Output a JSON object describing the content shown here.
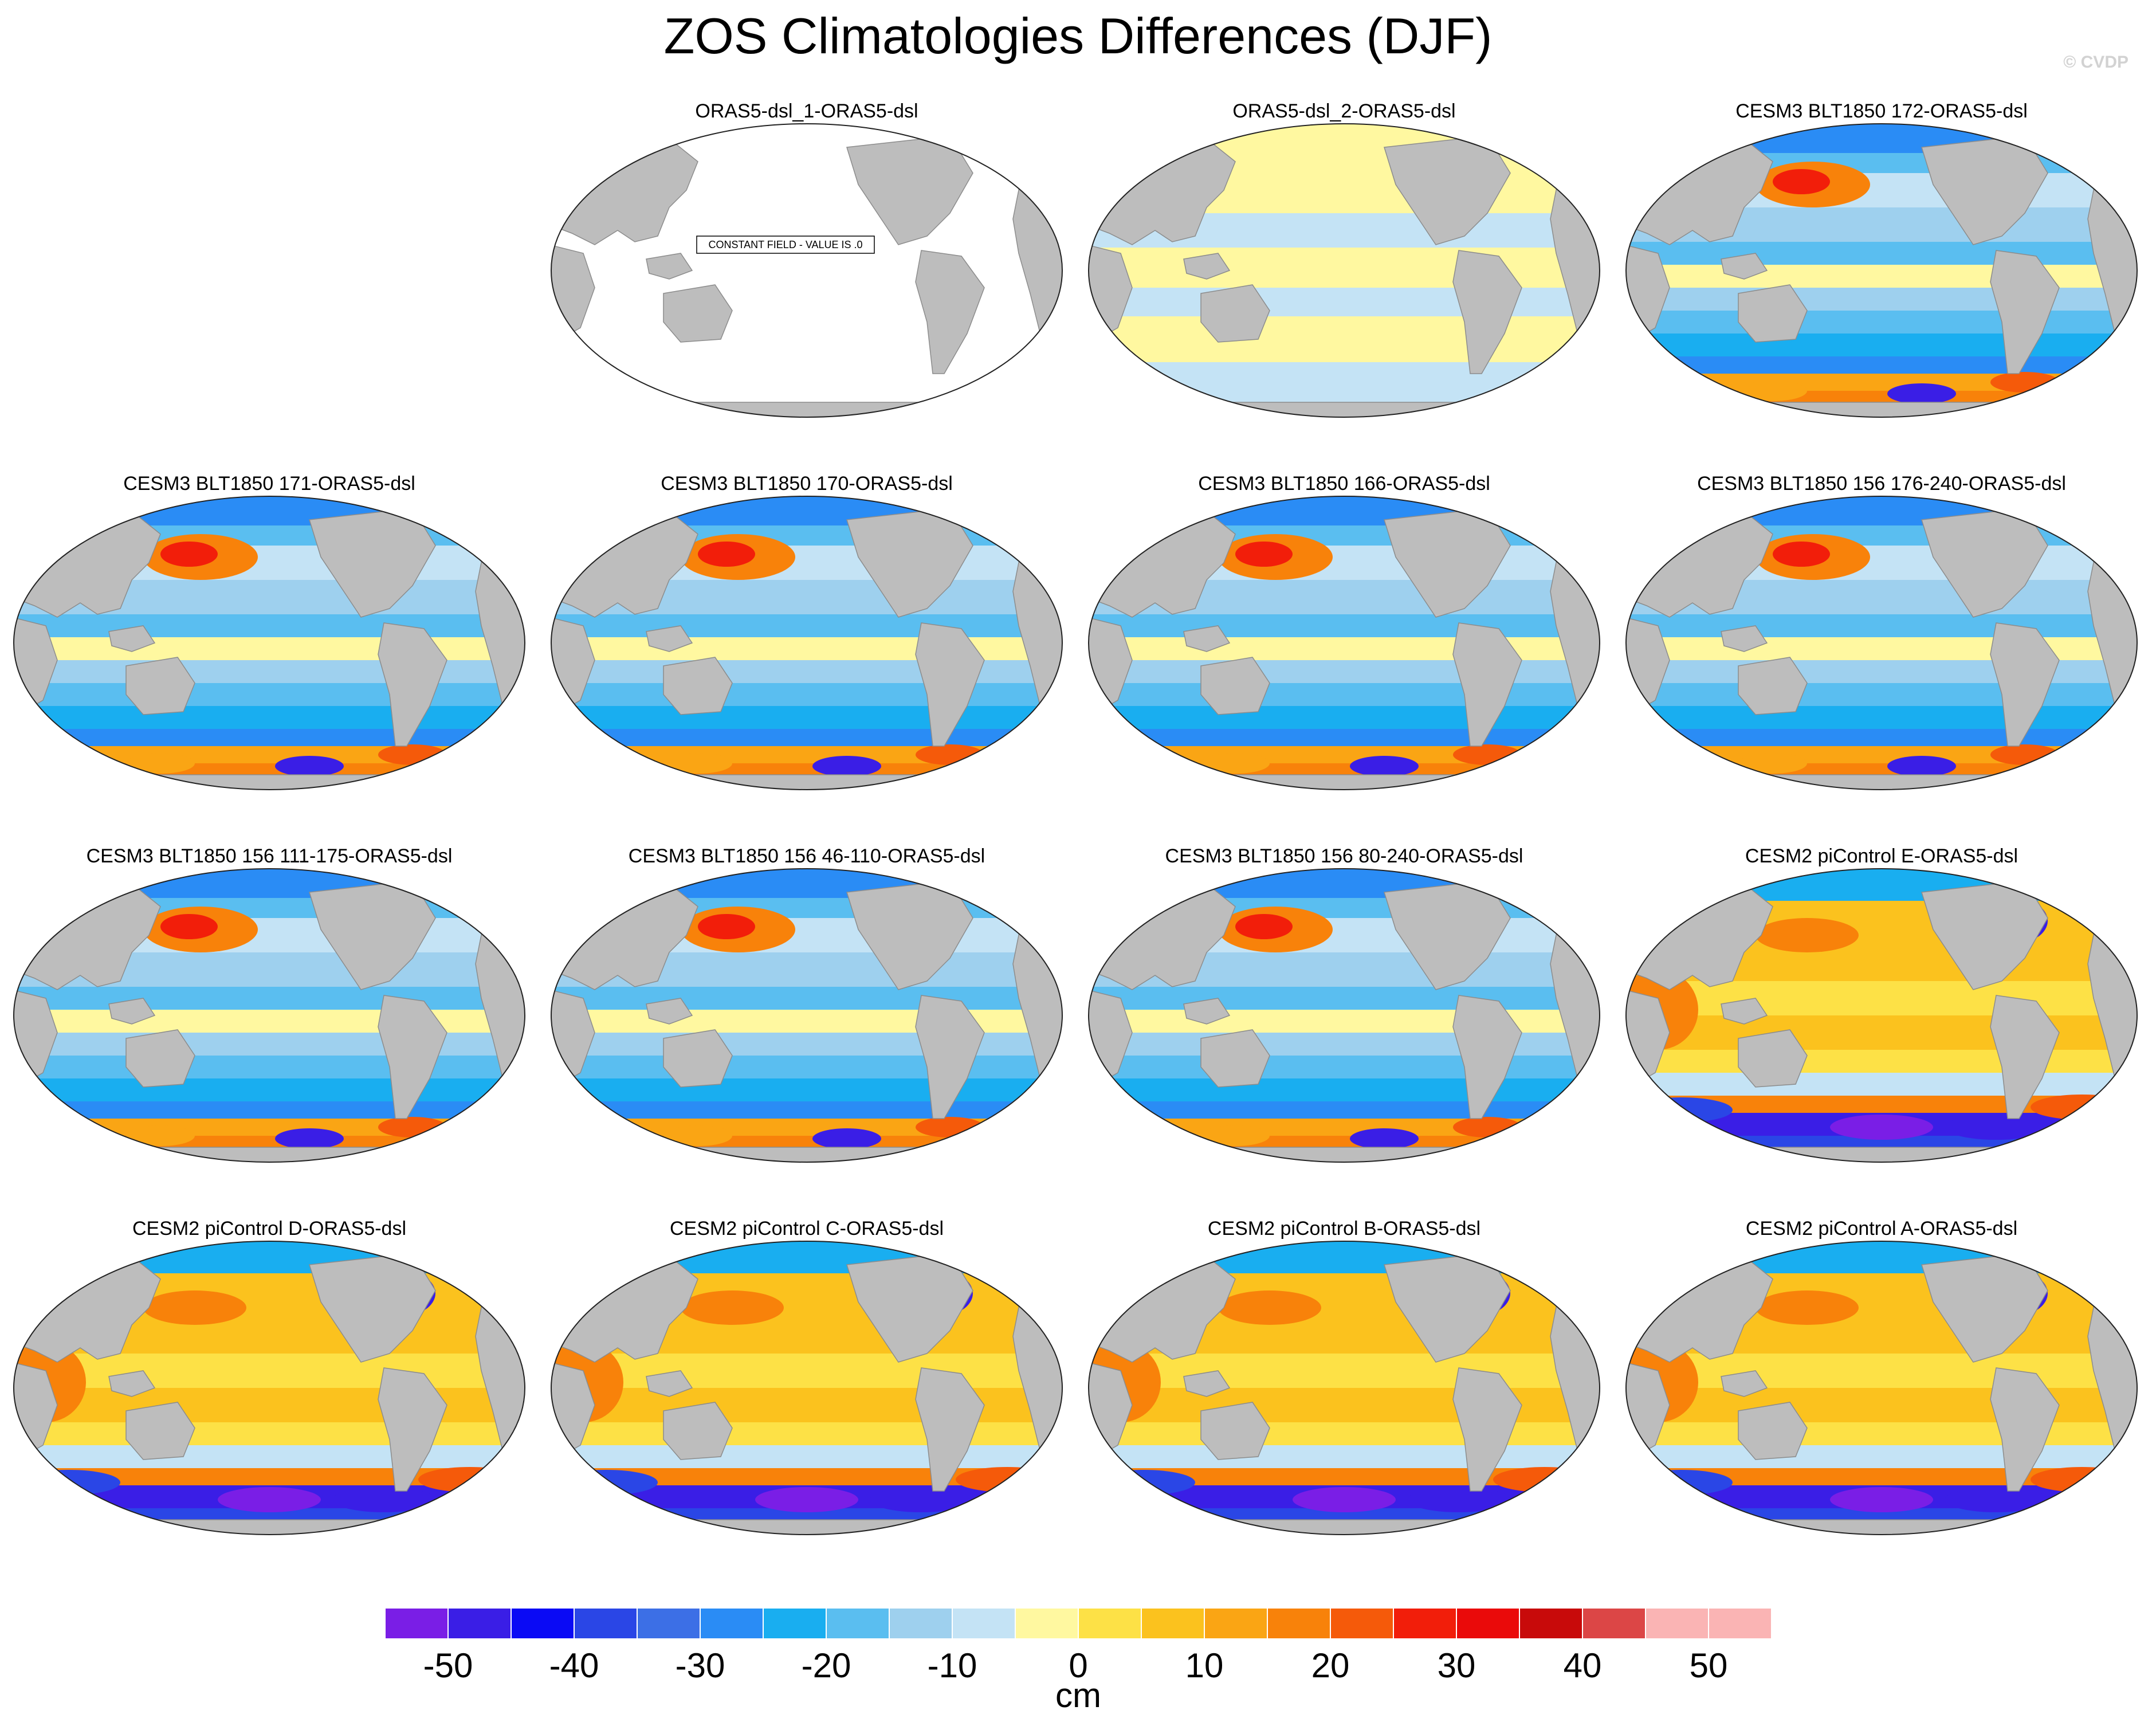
{
  "figure": {
    "title": "ZOS Climatologies Differences (DJF)",
    "copyright": "© CVDP",
    "background": "#ffffff",
    "land_color": "#bdbdbd"
  },
  "panels": [
    {
      "title": "ORAS5-dsl_1-ORAS5-dsl",
      "fill": "constant",
      "note": "CONSTANT FIELD - VALUE IS .0"
    },
    {
      "title": "ORAS5-dsl_2-ORAS5-dsl",
      "fill": "near-zero"
    },
    {
      "title": "CESM3 BLT1850 172-ORAS5-dsl",
      "fill": "cesm3"
    },
    {
      "title": "CESM3 BLT1850 171-ORAS5-dsl",
      "fill": "cesm3"
    },
    {
      "title": "CESM3 BLT1850 170-ORAS5-dsl",
      "fill": "cesm3"
    },
    {
      "title": "CESM3 BLT1850 166-ORAS5-dsl",
      "fill": "cesm3"
    },
    {
      "title": "CESM3 BLT1850 156 176-240-ORAS5-dsl",
      "fill": "cesm3"
    },
    {
      "title": "CESM3 BLT1850 156 111-175-ORAS5-dsl",
      "fill": "cesm3"
    },
    {
      "title": "CESM3 BLT1850 156 46-110-ORAS5-dsl",
      "fill": "cesm3"
    },
    {
      "title": "CESM3 BLT1850 156 80-240-ORAS5-dsl",
      "fill": "cesm3"
    },
    {
      "title": "CESM2 piControl E-ORAS5-dsl",
      "fill": "cesm2"
    },
    {
      "title": "CESM2 piControl D-ORAS5-dsl",
      "fill": "cesm2"
    },
    {
      "title": "CESM2 piControl C-ORAS5-dsl",
      "fill": "cesm2"
    },
    {
      "title": "CESM2 piControl B-ORAS5-dsl",
      "fill": "cesm2"
    },
    {
      "title": "CESM2 piControl A-ORAS5-dsl",
      "fill": "cesm2"
    }
  ],
  "colorbar": {
    "units": "cm",
    "tick_labels": [
      "-50",
      "-40",
      "-30",
      "-20",
      "-10",
      "0",
      "10",
      "20",
      "30",
      "40",
      "50"
    ],
    "min": -55,
    "max": 55,
    "step": 5,
    "colors": [
      "#7a1ee6",
      "#3a1ee6",
      "#0a0af5",
      "#2a46e6",
      "#3c6fe6",
      "#2a8cf5",
      "#19aef0",
      "#5abef0",
      "#9ed0ee",
      "#c4e3f5",
      "#fff8a0",
      "#fde146",
      "#fbc21e",
      "#faa514",
      "#f8820a",
      "#f55a0a",
      "#f21e0a",
      "#ea0a0a",
      "#c80a0a",
      "#dc4646",
      "#fab4b4"
    ]
  }
}
